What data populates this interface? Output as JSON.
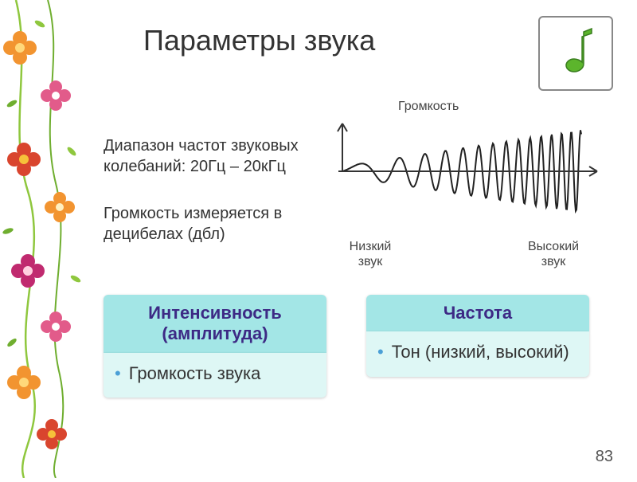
{
  "title": "Параметры звука",
  "range_text": "Диапазон частот звуковых колебаний: 20Гц – 20кГц",
  "loudness_text": "Громкость измеряется в децибелах (дбл)",
  "chart": {
    "label_top": "Громкость",
    "label_low": "Низкий звук",
    "label_high": "Высокий звук",
    "axis_color": "#333333",
    "wave_color": "#222222",
    "wave_stroke_width": 2
  },
  "icon": {
    "name": "music-note",
    "fill": "#5cb52c",
    "border": "#888888"
  },
  "boxes": {
    "left": {
      "header": "Интенсивность (амплитуда)",
      "header_bg": "#a3e6e6",
      "header_color": "#3d2a85",
      "body": "Громкость звука",
      "body_bg": "#def7f5",
      "body_color": "#333333",
      "bullet_color": "#4a9fd6"
    },
    "right": {
      "header": "Частота",
      "header_bg": "#a3e6e6",
      "header_color": "#3d2a85",
      "body": "Тон (низкий, высокий)",
      "body_bg": "#def7f5",
      "body_color": "#333333",
      "bullet_color": "#4a9fd6"
    }
  },
  "page_number": "83",
  "floral": {
    "colors": [
      "#f29430",
      "#e25b8a",
      "#8fc73e",
      "#6fae2f",
      "#d9452e",
      "#c02a6f"
    ]
  }
}
